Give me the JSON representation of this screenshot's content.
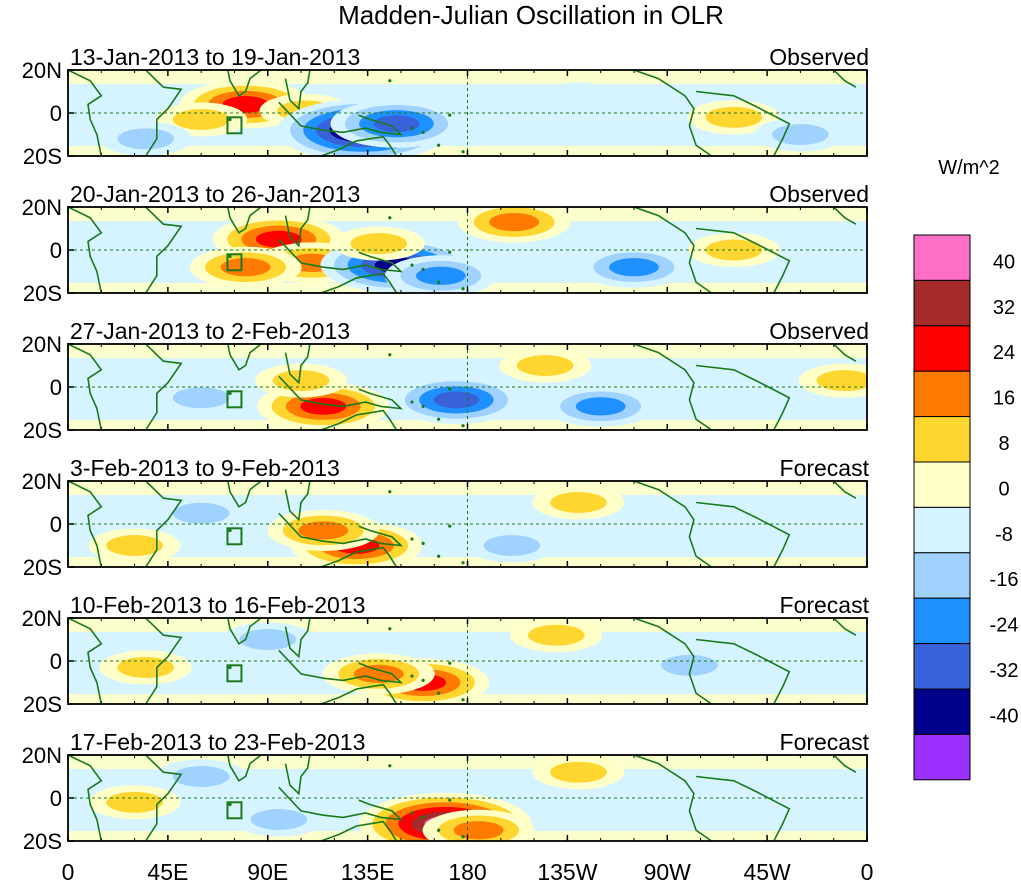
{
  "chart_data": {
    "type": "heatmap",
    "title": "Madden-Julian Oscillation in OLR",
    "variable": "OLR anomaly",
    "units": "W/m^2",
    "x_tick_labels": [
      "0",
      "45E",
      "90E",
      "135E",
      "180",
      "135W",
      "90W",
      "45W",
      "0"
    ],
    "x_ticks_deg": [
      0,
      45,
      90,
      135,
      180,
      225,
      270,
      315,
      360
    ],
    "y_tick_labels": [
      "20N",
      "0",
      "20S"
    ],
    "y_ticks_deg": [
      20,
      0,
      -20
    ],
    "xlim": [
      0,
      360
    ],
    "ylim": [
      -20,
      20
    ],
    "colorbar": {
      "label": "W/m^2",
      "tick_labels": [
        "40",
        "32",
        "24",
        "16",
        "8",
        "0",
        "-8",
        "-16",
        "-24",
        "-32",
        "-40"
      ],
      "levels": [
        40,
        32,
        24,
        16,
        8,
        0,
        -8,
        -16,
        -24,
        -32,
        -40
      ],
      "colors": [
        "#ff6ec7",
        "#a52a2a",
        "#ff0000",
        "#ff7a00",
        "#ffd530",
        "#ffffc8",
        "#d6f4ff",
        "#a0d2ff",
        "#1e90ff",
        "#3a62d8",
        "#00008b",
        "#9b30ff"
      ]
    },
    "panels": [
      {
        "date_range": "13-Jan-2013 to 19-Jan-2013",
        "status": "Observed",
        "anomalies": [
          {
            "lon": 80,
            "lat": 4,
            "value": 28
          },
          {
            "lon": 60,
            "lat": -3,
            "value": 14
          },
          {
            "lon": 107,
            "lat": 1,
            "value": 15
          },
          {
            "lon": 133,
            "lat": -8,
            "value": -43
          },
          {
            "lon": 148,
            "lat": -5,
            "value": -25
          },
          {
            "lon": 35,
            "lat": -12,
            "value": -9
          },
          {
            "lon": 300,
            "lat": -2,
            "value": 10
          },
          {
            "lon": 330,
            "lat": -10,
            "value": -14
          },
          {
            "lon": 230,
            "lat": 8,
            "value": -6
          }
        ]
      },
      {
        "date_range": "20-Jan-2013 to 26-Jan-2013",
        "status": "Observed",
        "anomalies": [
          {
            "lon": 95,
            "lat": 5,
            "value": 26
          },
          {
            "lon": 110,
            "lat": -6,
            "value": 22
          },
          {
            "lon": 80,
            "lat": -8,
            "value": 16
          },
          {
            "lon": 148,
            "lat": -7,
            "value": -35
          },
          {
            "lon": 168,
            "lat": -12,
            "value": -18
          },
          {
            "lon": 255,
            "lat": -8,
            "value": -20
          },
          {
            "lon": 201,
            "lat": 13,
            "value": 18
          },
          {
            "lon": 140,
            "lat": 3,
            "value": 12
          },
          {
            "lon": 300,
            "lat": 0,
            "value": 10
          }
        ]
      },
      {
        "date_range": "27-Jan-2013 to 2-Feb-2013",
        "status": "Observed",
        "anomalies": [
          {
            "lon": 115,
            "lat": -9,
            "value": 30
          },
          {
            "lon": 105,
            "lat": 3,
            "value": 15
          },
          {
            "lon": 175,
            "lat": -6,
            "value": -27
          },
          {
            "lon": 240,
            "lat": -9,
            "value": -22
          },
          {
            "lon": 215,
            "lat": 10,
            "value": 14
          },
          {
            "lon": 60,
            "lat": -5,
            "value": -10
          },
          {
            "lon": 350,
            "lat": 3,
            "value": 9
          }
        ]
      },
      {
        "date_range": "3-Feb-2013 to 9-Feb-2013",
        "status": "Forecast",
        "anomalies": [
          {
            "lon": 130,
            "lat": -10,
            "value": 30
          },
          {
            "lon": 115,
            "lat": -3,
            "value": 18
          },
          {
            "lon": 230,
            "lat": 10,
            "value": 12
          },
          {
            "lon": 200,
            "lat": -10,
            "value": -12
          },
          {
            "lon": 60,
            "lat": 5,
            "value": -11
          },
          {
            "lon": 30,
            "lat": -10,
            "value": 8
          }
        ]
      },
      {
        "date_range": "10-Feb-2013 to 16-Feb-2013",
        "status": "Forecast",
        "anomalies": [
          {
            "lon": 160,
            "lat": -10,
            "value": 31
          },
          {
            "lon": 140,
            "lat": -6,
            "value": 20
          },
          {
            "lon": 220,
            "lat": 12,
            "value": 10
          },
          {
            "lon": 90,
            "lat": 10,
            "value": -10
          },
          {
            "lon": 280,
            "lat": -2,
            "value": -12
          },
          {
            "lon": 35,
            "lat": -3,
            "value": 10
          }
        ]
      },
      {
        "date_range": "17-Feb-2013 to 23-Feb-2013",
        "status": "Forecast",
        "anomalies": [
          {
            "lon": 170,
            "lat": -12,
            "value": 42
          },
          {
            "lon": 185,
            "lat": -15,
            "value": 18
          },
          {
            "lon": 95,
            "lat": -10,
            "value": -12
          },
          {
            "lon": 60,
            "lat": 10,
            "value": -10
          },
          {
            "lon": 230,
            "lat": 12,
            "value": 9
          },
          {
            "lon": 30,
            "lat": -2,
            "value": 8
          }
        ]
      }
    ]
  }
}
